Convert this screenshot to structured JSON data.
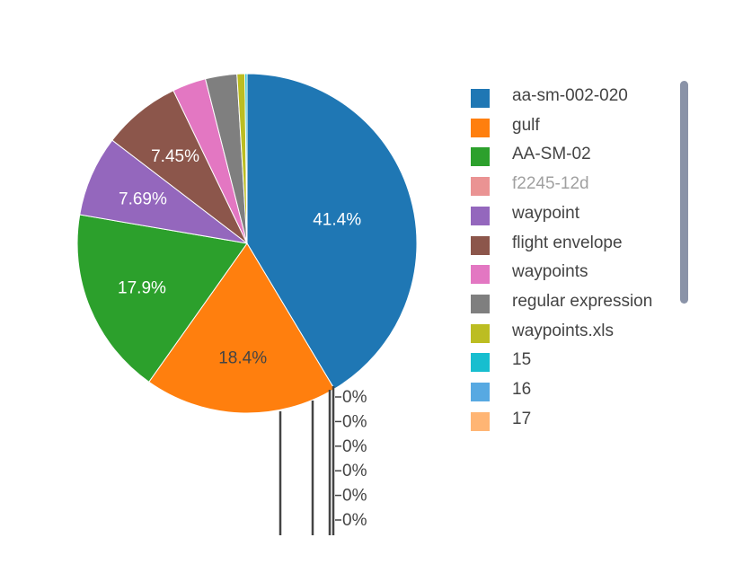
{
  "chart_data": {
    "type": "pie",
    "title": "",
    "slices": [
      {
        "label": "aa-sm-002-020",
        "value": 41.4,
        "text": "41.4%",
        "color": "#1f77b4",
        "visible": true
      },
      {
        "label": "gulf",
        "value": 18.4,
        "text": "18.4%",
        "color": "#ff7f0e",
        "visible": true
      },
      {
        "label": "AA-SM-02",
        "value": 17.9,
        "text": "17.9%",
        "color": "#2ca02c",
        "visible": true
      },
      {
        "label": "f2245-12d",
        "value": 0,
        "text": "",
        "color": "#d62728",
        "visible": false
      },
      {
        "label": "waypoint",
        "value": 7.69,
        "text": "7.69%",
        "color": "#9467bd",
        "visible": true
      },
      {
        "label": "flight envelope",
        "value": 7.45,
        "text": "7.45%",
        "color": "#8c564b",
        "visible": true
      },
      {
        "label": "waypoints",
        "value": 3.2,
        "text": "",
        "color": "#e377c2",
        "visible": true
      },
      {
        "label": "regular expression",
        "value": 3.0,
        "text": "",
        "color": "#7f7f7f",
        "visible": true
      },
      {
        "label": "waypoints.xls",
        "value": 0.75,
        "text": "",
        "color": "#bcbd22",
        "visible": true
      },
      {
        "label": "15",
        "value": 0.2,
        "text": "",
        "color": "#17becf",
        "visible": true
      },
      {
        "label": "16",
        "value": 0,
        "text": "0%",
        "color": "#57a9e2",
        "visible": true
      },
      {
        "label": "17",
        "value": 0,
        "text": "0%",
        "color": "#ffb574",
        "visible": true
      }
    ],
    "zero_labels": [
      "0%",
      "0%",
      "0%",
      "0%",
      "0%",
      "0%"
    ],
    "legend_placement": "right",
    "legend_scrollable": true
  }
}
